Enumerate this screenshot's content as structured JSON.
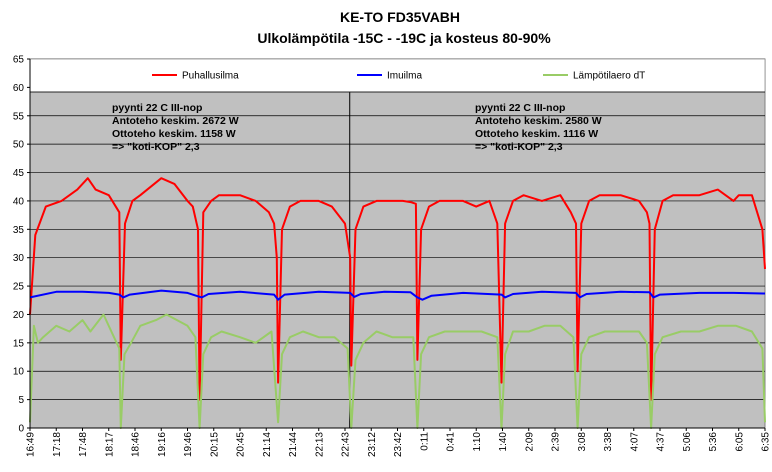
{
  "chart_data": {
    "type": "line",
    "title": "KE-TO FD35VABH",
    "subtitle": "Ulkolämpötila -15C - -19C ja kosteus 80-90%",
    "xlabel": "",
    "ylabel": "",
    "ylim": [
      0,
      65
    ],
    "y_ticks": [
      0,
      5,
      10,
      15,
      20,
      25,
      30,
      35,
      40,
      45,
      50,
      55,
      60,
      65
    ],
    "x_tick_labels": [
      "16:49",
      "17:18",
      "17:48",
      "18:17",
      "18:46",
      "19:16",
      "19:46",
      "20:15",
      "20:45",
      "21:14",
      "21:44",
      "22:13",
      "22:43",
      "23:12",
      "23:42",
      "0:11",
      "0:41",
      "1:10",
      "1:40",
      "2:09",
      "2:39",
      "3:08",
      "3:38",
      "4:07",
      "4:37",
      "5:06",
      "5:36",
      "6:05",
      "6:35"
    ],
    "grid": true,
    "legend_position": "top",
    "colors": {
      "plot_background": "#c0c0c0",
      "legend_background": "#ffffff",
      "gridline": "#000000"
    },
    "annotations": [
      {
        "lines": [
          "pyynti 22 C III-nop",
          "Antoteho keskim. 2672 W",
          "Ottoteho keskim. 1158 W",
          "=> \"koti-KOP\" 2,3"
        ]
      },
      {
        "lines": [
          "pyynti 22 C III-nop",
          "Antoteho keskim. 2580 W",
          "Ottoteho keskim. 1116 W",
          "=> \"koti-KOP\" 2,3"
        ]
      }
    ],
    "series": [
      {
        "name": "Puhallusilma",
        "color": "#ff0000",
        "x": [
          0,
          0.2,
          0.6,
          1.2,
          1.8,
          2.2,
          2.5,
          3.0,
          3.4,
          3.46,
          3.62,
          3.9,
          4.2,
          5.0,
          5.5,
          6.0,
          6.2,
          6.4,
          6.46,
          6.6,
          6.9,
          7.2,
          8.0,
          8.6,
          9.1,
          9.3,
          9.4,
          9.45,
          9.6,
          9.9,
          10.3,
          11.0,
          11.5,
          12.0,
          12.2,
          12.24,
          12.4,
          12.7,
          13.2,
          13.6,
          14.2,
          14.5,
          14.7,
          14.76,
          14.9,
          15.2,
          15.6,
          16.5,
          17.0,
          17.5,
          17.8,
          17.96,
          18.1,
          18.4,
          18.8,
          19.5,
          20.2,
          20.6,
          20.8,
          20.86,
          21.0,
          21.3,
          21.7,
          22.5,
          23.2,
          23.5,
          23.6,
          23.66,
          23.8,
          24.1,
          24.5,
          25.5,
          26.2,
          26.8,
          27.0,
          27.5,
          27.9,
          28.0
        ],
        "y": [
          20,
          34,
          39,
          40,
          42,
          44,
          42,
          41,
          38,
          12,
          36,
          40,
          41,
          44,
          43,
          40,
          39,
          35,
          5,
          38,
          40,
          41,
          41,
          40,
          38,
          36,
          30,
          8,
          35,
          39,
          40,
          40,
          39,
          36,
          30,
          11,
          35,
          39,
          40,
          40,
          40,
          39.8,
          39.5,
          12,
          35,
          39,
          40,
          40,
          39,
          40,
          36,
          8,
          36,
          40,
          41,
          40,
          41,
          38,
          36,
          10,
          36,
          40,
          41,
          41,
          40,
          38,
          36,
          5,
          35,
          40,
          41,
          41,
          42,
          40,
          41,
          41,
          35,
          28
        ]
      },
      {
        "name": "Imuilma",
        "color": "#0000ff",
        "x": [
          0,
          1.0,
          2.0,
          3.0,
          3.4,
          3.55,
          3.8,
          5.0,
          6.0,
          6.4,
          6.55,
          6.8,
          8.0,
          9.3,
          9.45,
          9.7,
          11.0,
          12.2,
          12.35,
          12.6,
          13.5,
          14.5,
          14.76,
          14.95,
          15.3,
          16.5,
          17.96,
          18.1,
          18.4,
          19.5,
          20.8,
          20.95,
          21.2,
          22.5,
          23.6,
          23.75,
          24.0,
          25.5,
          26.8,
          28.0
        ],
        "y": [
          23,
          24,
          24,
          23.8,
          23.5,
          23,
          23.5,
          24.2,
          23.8,
          23.2,
          23,
          23.6,
          24,
          23.5,
          22.6,
          23.5,
          24,
          23.8,
          23.1,
          23.6,
          24,
          23.9,
          23,
          22.6,
          23.3,
          23.8,
          23.5,
          23,
          23.6,
          24,
          23.8,
          23,
          23.6,
          24,
          23.9,
          23,
          23.5,
          23.8,
          23.8,
          23.7
        ]
      },
      {
        "name": "Lämpötilaero dT",
        "color": "#99cc66",
        "x": [
          0,
          0.15,
          0.3,
          0.5,
          1.0,
          1.5,
          2.0,
          2.3,
          2.8,
          3.2,
          3.4,
          3.46,
          3.6,
          3.85,
          4.2,
          4.8,
          5.2,
          5.6,
          6.0,
          6.3,
          6.46,
          6.6,
          6.9,
          7.3,
          8.0,
          8.6,
          9.2,
          9.45,
          9.6,
          9.9,
          10.4,
          11.0,
          11.6,
          12.1,
          12.24,
          12.4,
          12.7,
          13.2,
          13.8,
          14.6,
          14.76,
          14.9,
          15.2,
          15.8,
          16.6,
          17.2,
          17.8,
          17.96,
          18.1,
          18.4,
          19.0,
          19.6,
          20.2,
          20.7,
          20.86,
          21.0,
          21.3,
          21.9,
          22.6,
          23.2,
          23.5,
          23.66,
          23.8,
          24.1,
          24.8,
          25.5,
          26.2,
          26.9,
          27.5,
          27.9,
          28.0
        ],
        "y": [
          1,
          18,
          15,
          16,
          18,
          17,
          19,
          17,
          20,
          16,
          14,
          0,
          13,
          15,
          18,
          19,
          20,
          19,
          18,
          16,
          0,
          13,
          16,
          17,
          16,
          15,
          17,
          1,
          13,
          16,
          17,
          16,
          16,
          14,
          0,
          12,
          15,
          17,
          16,
          16,
          0,
          13,
          16,
          17,
          17,
          17,
          16,
          0,
          13,
          17,
          17,
          18,
          18,
          16,
          0,
          13,
          16,
          17,
          17,
          17,
          15,
          0,
          13,
          16,
          17,
          17,
          18,
          18,
          17,
          14,
          1
        ]
      }
    ]
  }
}
